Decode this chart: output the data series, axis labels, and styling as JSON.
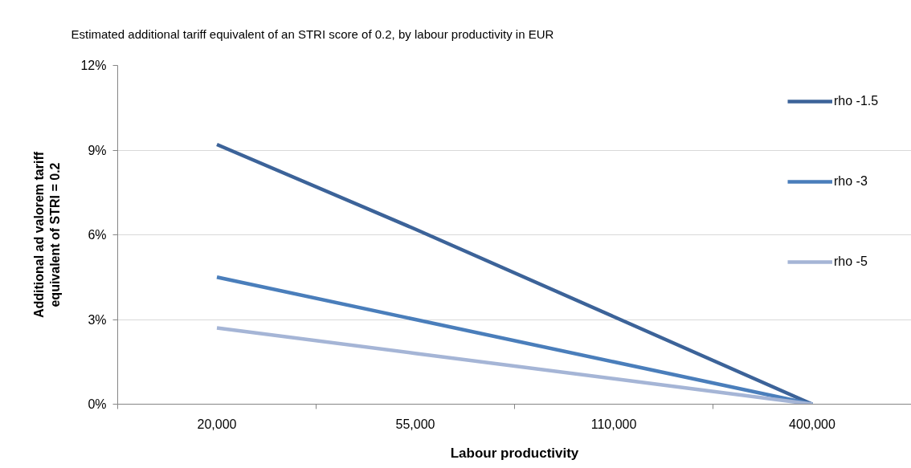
{
  "chart_data": {
    "type": "line",
    "title": "Estimated additional tariff equivalent of an STRI score of 0.2, by labour productivity in EUR",
    "xlabel": "Labour productivity",
    "ylabel": "Additional ad valorem tariff equivalent of STRI = 0.2",
    "categories": [
      "20,000",
      "55,000",
      "110,000",
      "400,000"
    ],
    "series": [
      {
        "name": "rho -1.5",
        "color": "#3c6399",
        "values": [
          9.2,
          6.2,
          3.1,
          0
        ]
      },
      {
        "name": "rho -3",
        "color": "#4a7ebb",
        "values": [
          4.5,
          3.0,
          1.5,
          0
        ]
      },
      {
        "name": "rho -5",
        "color": "#a5b5d6",
        "values": [
          2.7,
          1.8,
          0.9,
          0
        ]
      }
    ],
    "ylim": [
      0,
      12
    ],
    "yticks": [
      {
        "value": 0,
        "label": "0%"
      },
      {
        "value": 3,
        "label": "3%"
      },
      {
        "value": 6,
        "label": "6%"
      },
      {
        "value": 9,
        "label": "9%"
      },
      {
        "value": 12,
        "label": "12%"
      }
    ],
    "grid": "y",
    "legend": "right",
    "line_style": "solid"
  }
}
